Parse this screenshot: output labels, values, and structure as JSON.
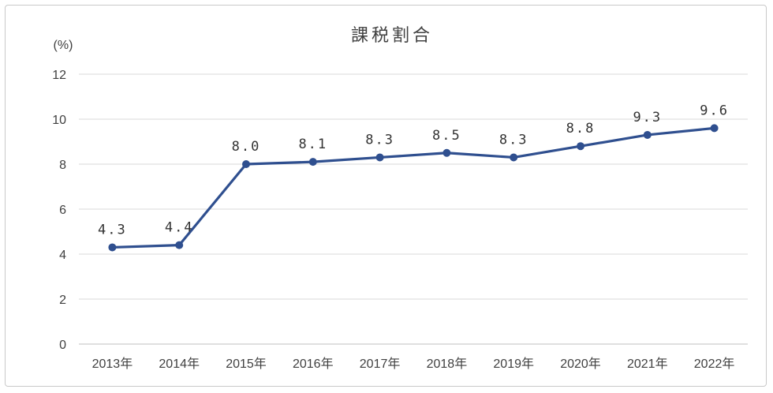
{
  "colors": {
    "series": "#2f4f8f",
    "grid": "#d9d9d9",
    "text": "#404040"
  },
  "chart_data": {
    "type": "line",
    "title": "課税割合",
    "ylabel": "(%)",
    "xlabel": "",
    "categories": [
      "2013年",
      "2014年",
      "2015年",
      "2016年",
      "2017年",
      "2018年",
      "2019年",
      "2020年",
      "2021年",
      "2022年"
    ],
    "series": [
      {
        "name": "課税割合",
        "values": [
          4.3,
          4.4,
          8.0,
          8.1,
          8.3,
          8.5,
          8.3,
          8.8,
          9.3,
          9.6
        ],
        "labels": [
          "4.3",
          "4.4",
          "8.0",
          "8.1",
          "8.3",
          "8.5",
          "8.3",
          "8.8",
          "9.3",
          "9.6"
        ]
      }
    ],
    "ylim": [
      0,
      12
    ],
    "yticks": [
      "0",
      "2",
      "4",
      "6",
      "8",
      "10",
      "12"
    ],
    "grid": true,
    "legend": "none"
  }
}
